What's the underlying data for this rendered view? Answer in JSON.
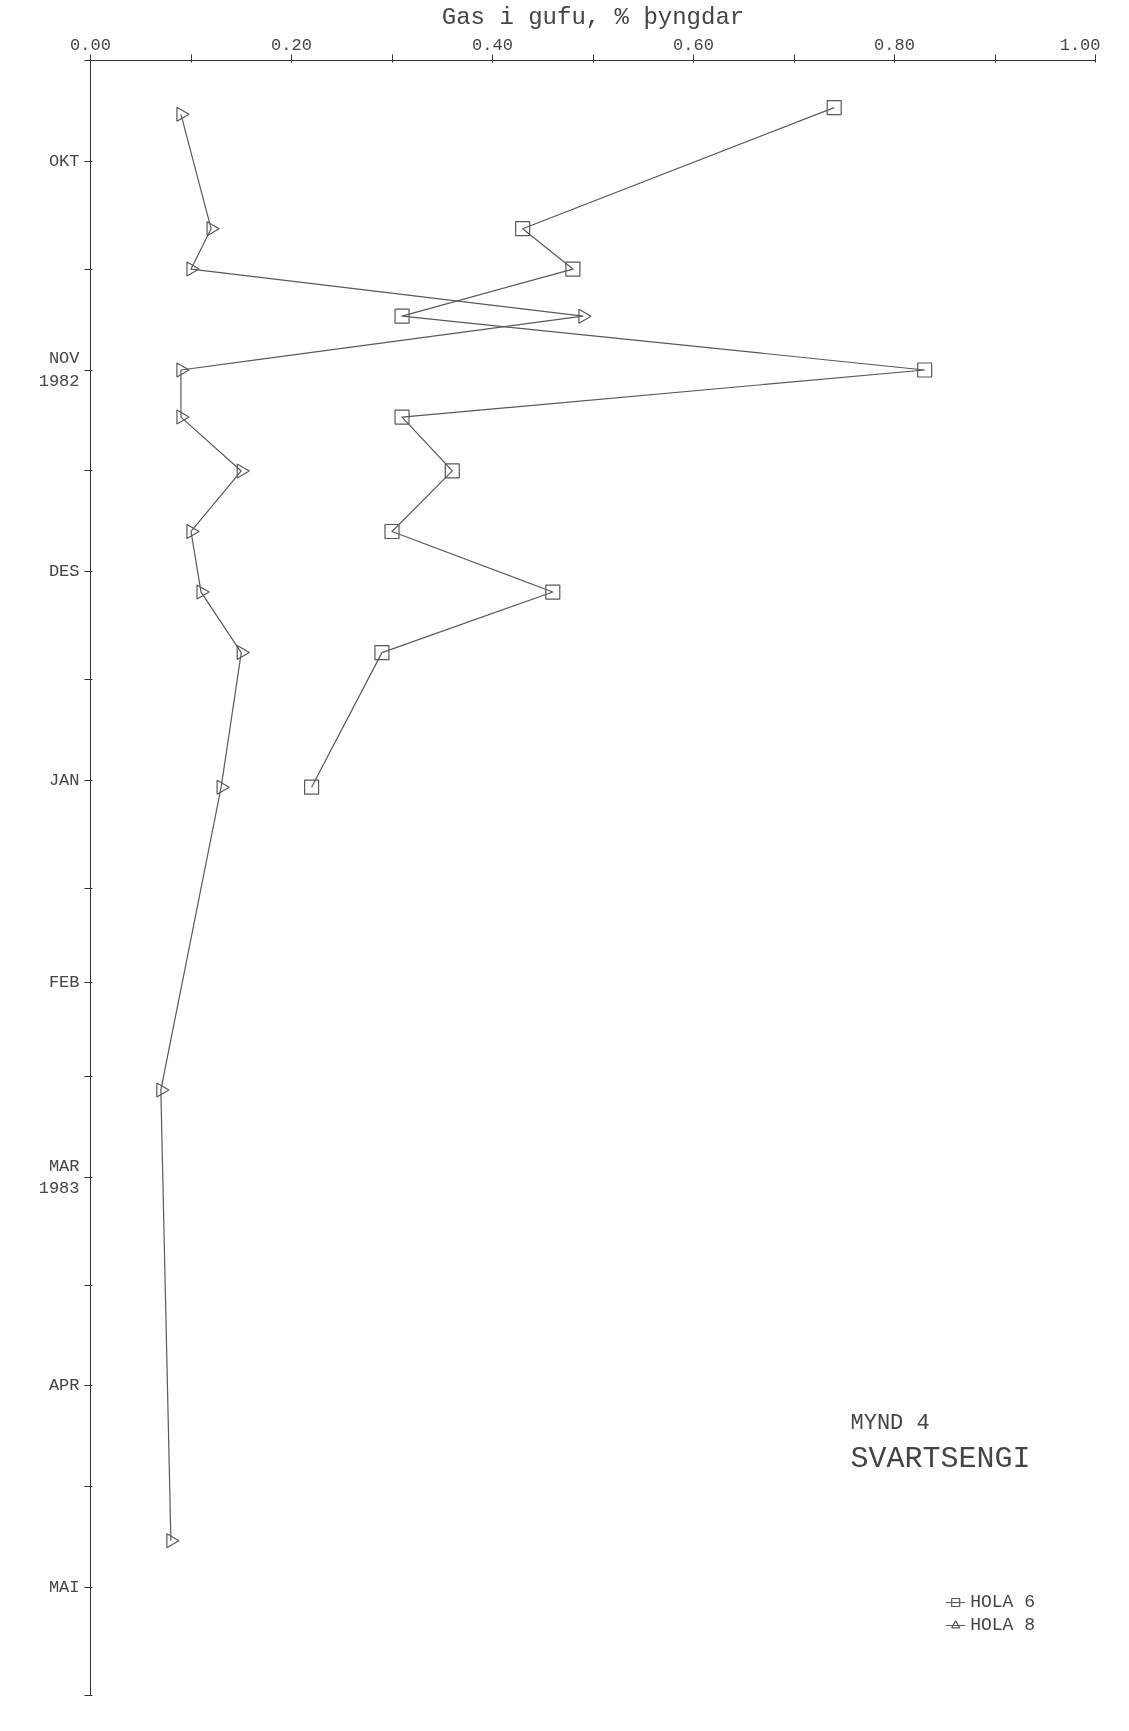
{
  "chart_data": {
    "type": "line",
    "orientation": "horizontal",
    "title": "MYND 4",
    "subtitle": "SVARTSENGI",
    "xlabel": "Gas i gufu, % þyngdar",
    "xlim": [
      0,
      1
    ],
    "xticks": [
      {
        "value": 0,
        "label": "0.00"
      },
      {
        "value": 0.1,
        "label": null
      },
      {
        "value": 0.2,
        "label": "0.20"
      },
      {
        "value": 0.3,
        "label": null
      },
      {
        "value": 0.4,
        "label": "0.40"
      },
      {
        "value": 0.5,
        "label": null
      },
      {
        "value": 0.6,
        "label": "0.60"
      },
      {
        "value": 0.7,
        "label": null
      },
      {
        "value": 0.8,
        "label": "0.80"
      },
      {
        "value": 0.9,
        "label": null
      },
      {
        "value": 1,
        "label": "1.00"
      }
    ],
    "ylim": [
      "1983-06-01",
      "1982-10-01"
    ],
    "yticks": [
      {
        "value": "1982-10-01",
        "label": null
      },
      {
        "value": "1982-10-16",
        "label": "OKT"
      },
      {
        "value": "1982-11-01",
        "label": null
      },
      {
        "value": "1982-11-16",
        "label": "NOV\n1982"
      },
      {
        "value": "1982-12-01",
        "label": null
      },
      {
        "value": "1982-12-16",
        "label": "DES"
      },
      {
        "value": "1983-01-01",
        "label": null
      },
      {
        "value": "1983-01-16",
        "label": "JAN"
      },
      {
        "value": "1983-02-01",
        "label": null
      },
      {
        "value": "1983-02-15",
        "label": "FEB"
      },
      {
        "value": "1983-03-01",
        "label": null
      },
      {
        "value": "1983-03-16",
        "label": "MAR\n1983"
      },
      {
        "value": "1983-04-01",
        "label": null
      },
      {
        "value": "1983-04-16",
        "label": "APR"
      },
      {
        "value": "1983-05-01",
        "label": null
      },
      {
        "value": "1983-05-16",
        "label": "MAI"
      },
      {
        "value": "1983-06-01",
        "label": null
      }
    ],
    "grid": false,
    "legend": "bottom right",
    "series": [
      {
        "name": "HOLA 6",
        "color": "#555a55",
        "marker": "square",
        "x": [
          "1982-10-08",
          "1982-10-26",
          "1982-11-01",
          "1982-11-08",
          "1982-11-16",
          "1982-11-23",
          "1982-12-01",
          "1982-12-10",
          "1982-12-19",
          "1982-12-28",
          "1983-01-17"
        ],
        "values": [
          0.74,
          0.43,
          0.48,
          0.31,
          0.83,
          0.31,
          0.36,
          0.3,
          0.46,
          0.29,
          0.22
        ]
      },
      {
        "name": "HOLA 8",
        "color": "#555a55",
        "marker": "triangle",
        "x": [
          "1982-10-09",
          "1982-10-26",
          "1982-11-01",
          "1982-11-08",
          "1982-11-16",
          "1982-11-23",
          "1982-12-01",
          "1982-12-10",
          "1982-12-19",
          "1982-12-28",
          "1983-01-17",
          "1983-03-03",
          "1983-05-09"
        ],
        "values": [
          0.09,
          0.12,
          0.1,
          0.49,
          0.09,
          0.09,
          0.15,
          0.1,
          0.11,
          0.15,
          0.13,
          0.07,
          0.08
        ]
      }
    ]
  }
}
